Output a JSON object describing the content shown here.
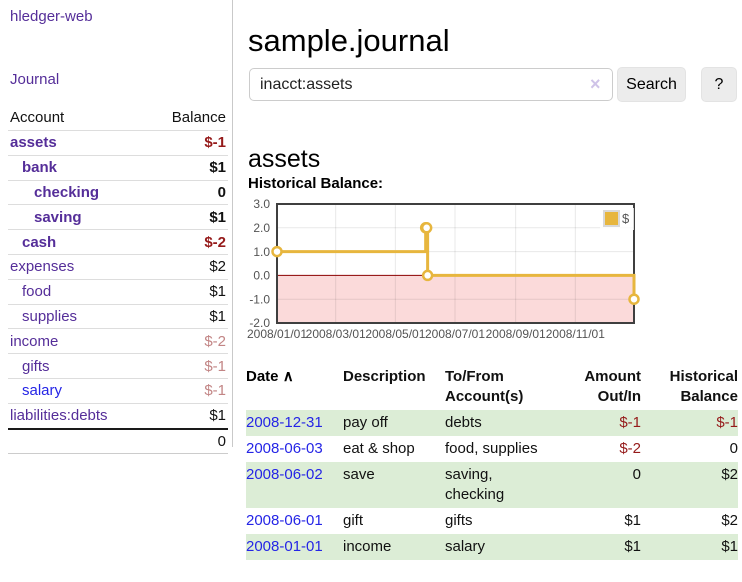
{
  "app": {
    "brand": "hledger-web",
    "nav_journal": "Journal"
  },
  "sidebar": {
    "header": {
      "account": "Account",
      "balance": "Balance"
    },
    "accounts": [
      {
        "name": "assets",
        "balance": "$-1"
      },
      {
        "name": "bank",
        "balance": "$1"
      },
      {
        "name": "checking",
        "balance": "0"
      },
      {
        "name": "saving",
        "balance": "$1"
      },
      {
        "name": "cash",
        "balance": "$-2"
      },
      {
        "name": "expenses",
        "balance": "$2"
      },
      {
        "name": "food",
        "balance": "$1"
      },
      {
        "name": "supplies",
        "balance": "$1"
      },
      {
        "name": "income",
        "balance": "$-2"
      },
      {
        "name": "gifts",
        "balance": "$-1"
      },
      {
        "name": "salary",
        "balance": "$-1"
      },
      {
        "name": "liabilities:debts",
        "balance": "$1"
      }
    ],
    "total": "0"
  },
  "header": {
    "title": "sample.journal"
  },
  "search": {
    "value": "inacct:assets",
    "clear_icon": "×",
    "button_label": "Search",
    "help_label": "?"
  },
  "account_page": {
    "title": "assets",
    "chart_label": "Historical Balance:"
  },
  "chart_data": {
    "type": "line",
    "mode": "steps",
    "title": "Historical Balance",
    "series": [
      {
        "name": "$",
        "points": [
          [
            "2008-01-01",
            1
          ],
          [
            "2008-06-01",
            2
          ],
          [
            "2008-06-02",
            2
          ],
          [
            "2008-06-03",
            0
          ],
          [
            "2008-12-31",
            -1
          ]
        ]
      }
    ],
    "x_range": [
      "2008-01-01",
      "2008-12-31"
    ],
    "y_range": [
      -2,
      3
    ],
    "y_ticks": [
      {
        "value": 3,
        "label": "3.0"
      },
      {
        "value": 2,
        "label": "2.0"
      },
      {
        "value": 1,
        "label": "1.0"
      },
      {
        "value": 0,
        "label": "0.0"
      },
      {
        "value": -1,
        "label": "-1.0"
      },
      {
        "value": -2,
        "label": "-2.0"
      }
    ],
    "x_ticks": [
      {
        "date": "2008-01-01",
        "label": "2008/01/01"
      },
      {
        "date": "2008-03-01",
        "label": "2008/03/01"
      },
      {
        "date": "2008-05-01",
        "label": "2008/05/01"
      },
      {
        "date": "2008-07-01",
        "label": "2008/07/01"
      },
      {
        "date": "2008-09-01",
        "label": "2008/09/01"
      },
      {
        "date": "2008-11-01",
        "label": "2008/11/01"
      }
    ],
    "legend": "$",
    "legend_position": "top-right",
    "grid": true,
    "colors": {
      "series": "#e7b63e",
      "negative_fill": "#fbdada",
      "zero_line": "#8b0000",
      "plot_border": "#3f3f3f",
      "tick_text": "#545454"
    }
  },
  "register": {
    "headers": {
      "date": "Date",
      "sort_indicator": "∧",
      "description": "Description",
      "accounts": "To/From Account(s)",
      "amount": "Amount Out/In",
      "balance": "Historical Balance"
    },
    "rows": [
      {
        "date": "2008-12-31",
        "description": "pay off",
        "accounts": "debts",
        "amount": "$-1",
        "balance": "$-1"
      },
      {
        "date": "2008-06-03",
        "description": "eat & shop",
        "accounts": "food, supplies",
        "amount": "$-2",
        "balance": "0"
      },
      {
        "date": "2008-06-02",
        "description": "save",
        "accounts": "saving, checking",
        "amount": "0",
        "balance": "$2"
      },
      {
        "date": "2008-06-01",
        "description": "gift",
        "accounts": "gifts",
        "amount": "$1",
        "balance": "$2"
      },
      {
        "date": "2008-01-01",
        "description": "income",
        "accounts": "salary",
        "amount": "$1",
        "balance": "$1"
      }
    ]
  }
}
